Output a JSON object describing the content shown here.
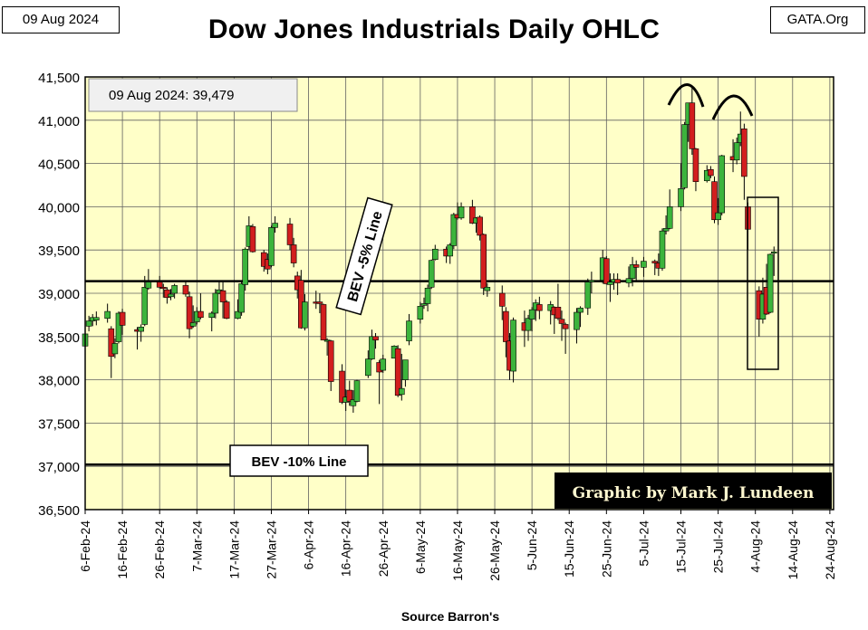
{
  "header": {
    "date_stamp": "09 Aug 2024",
    "title": "Dow Jones Industrials Daily OHLC",
    "brand": "GATA.Org"
  },
  "annotations": {
    "last_close": "09 Aug 2024:  39,479",
    "bev5_label": "BEV -5% Line",
    "bev10_label": "BEV -10% Line",
    "credit": "Graphic by Mark J. Lundeen",
    "source": "Source Barron's"
  },
  "colors": {
    "plot_bg": "#ffffc8",
    "grid": "#606060",
    "up": "#3cb43c",
    "down": "#d21e1e",
    "frame": "#000000"
  },
  "chart_data": {
    "type": "ohlc",
    "ylim": [
      36500,
      41500
    ],
    "y_ticks": [
      36500,
      37000,
      37500,
      38000,
      38500,
      39000,
      39500,
      40000,
      40500,
      41000,
      41500
    ],
    "y_tick_labels": [
      "36,500",
      "37,000",
      "37,500",
      "38,000",
      "38,500",
      "39,000",
      "39,500",
      "40,000",
      "40,500",
      "41,000",
      "41,500"
    ],
    "x_tick_labels": [
      "6-Feb-24",
      "16-Feb-24",
      "26-Feb-24",
      "7-Mar-24",
      "17-Mar-24",
      "27-Mar-24",
      "6-Apr-24",
      "16-Apr-24",
      "26-Apr-24",
      "6-May-24",
      "16-May-24",
      "26-May-24",
      "5-Jun-24",
      "15-Jun-24",
      "25-Jun-24",
      "5-Jul-24",
      "15-Jul-24",
      "25-Jul-24",
      "4-Aug-24",
      "14-Aug-24",
      "24-Aug-24"
    ],
    "x_day_start": "6-Feb-24",
    "x_day_span": 201,
    "reference_lines": [
      {
        "label": "BEV -5% Line",
        "value": 39140
      },
      {
        "label": "BEV -10% Line",
        "value": 37020
      }
    ],
    "bars": [
      {
        "date": "5-Feb-24",
        "open": 38520,
        "high": 38620,
        "low": 38300,
        "close": 38380
      },
      {
        "date": "6-Feb-24",
        "open": 38390,
        "high": 38700,
        "low": 38360,
        "close": 38530
      },
      {
        "date": "7-Feb-24",
        "open": 38620,
        "high": 38740,
        "low": 38560,
        "close": 38680
      },
      {
        "date": "8-Feb-24",
        "open": 38680,
        "high": 38760,
        "low": 38620,
        "close": 38720
      },
      {
        "date": "9-Feb-24",
        "open": 38690,
        "high": 38790,
        "low": 38630,
        "close": 38720
      },
      {
        "date": "12-Feb-24",
        "open": 38710,
        "high": 38880,
        "low": 38660,
        "close": 38790
      },
      {
        "date": "13-Feb-24",
        "open": 38590,
        "high": 38620,
        "low": 38020,
        "close": 38270
      },
      {
        "date": "14-Feb-24",
        "open": 38300,
        "high": 38480,
        "low": 38250,
        "close": 38420
      },
      {
        "date": "15-Feb-24",
        "open": 38440,
        "high": 38790,
        "low": 38420,
        "close": 38770
      },
      {
        "date": "16-Feb-24",
        "open": 38780,
        "high": 38820,
        "low": 38520,
        "close": 38630
      },
      {
        "date": "20-Feb-24",
        "open": 38580,
        "high": 38610,
        "low": 38350,
        "close": 38560
      },
      {
        "date": "21-Feb-24",
        "open": 38560,
        "high": 38640,
        "low": 38440,
        "close": 38610
      },
      {
        "date": "22-Feb-24",
        "open": 38640,
        "high": 39200,
        "low": 38620,
        "close": 39070
      },
      {
        "date": "23-Feb-24",
        "open": 39060,
        "high": 39280,
        "low": 39040,
        "close": 39130
      },
      {
        "date": "26-Feb-24",
        "open": 39130,
        "high": 39200,
        "low": 39050,
        "close": 39070
      },
      {
        "date": "27-Feb-24",
        "open": 39070,
        "high": 39110,
        "low": 38950,
        "close": 39060
      },
      {
        "date": "28-Feb-24",
        "open": 39040,
        "high": 39070,
        "low": 38880,
        "close": 38950
      },
      {
        "date": "29-Feb-24",
        "open": 38960,
        "high": 39050,
        "low": 38920,
        "close": 38990
      },
      {
        "date": "1-Mar-24",
        "open": 39000,
        "high": 39110,
        "low": 38940,
        "close": 39090
      },
      {
        "date": "4-Mar-24",
        "open": 39090,
        "high": 39140,
        "low": 38960,
        "close": 38990
      },
      {
        "date": "5-Mar-24",
        "open": 38960,
        "high": 39020,
        "low": 38480,
        "close": 38590
      },
      {
        "date": "6-Mar-24",
        "open": 38620,
        "high": 38860,
        "low": 38600,
        "close": 38660
      },
      {
        "date": "7-Mar-24",
        "open": 38670,
        "high": 38840,
        "low": 38640,
        "close": 38790
      },
      {
        "date": "8-Mar-24",
        "open": 38790,
        "high": 39000,
        "low": 38700,
        "close": 38720
      },
      {
        "date": "11-Mar-24",
        "open": 38720,
        "high": 38790,
        "low": 38560,
        "close": 38770
      },
      {
        "date": "12-Mar-24",
        "open": 38770,
        "high": 39050,
        "low": 38710,
        "close": 39000
      },
      {
        "date": "13-Mar-24",
        "open": 39000,
        "high": 39150,
        "low": 38990,
        "close": 39040
      },
      {
        "date": "14-Mar-24",
        "open": 39030,
        "high": 39150,
        "low": 38710,
        "close": 38900
      },
      {
        "date": "15-Mar-24",
        "open": 38900,
        "high": 38920,
        "low": 38700,
        "close": 38710
      },
      {
        "date": "18-Mar-24",
        "open": 38710,
        "high": 38930,
        "low": 38700,
        "close": 38790
      },
      {
        "date": "19-Mar-24",
        "open": 38780,
        "high": 39150,
        "low": 38740,
        "close": 39110
      },
      {
        "date": "20-Mar-24",
        "open": 39100,
        "high": 39530,
        "low": 39030,
        "close": 39510
      },
      {
        "date": "21-Mar-24",
        "open": 39540,
        "high": 39890,
        "low": 39500,
        "close": 39780
      },
      {
        "date": "22-Mar-24",
        "open": 39770,
        "high": 39800,
        "low": 39470,
        "close": 39480
      },
      {
        "date": "25-Mar-24",
        "open": 39470,
        "high": 39500,
        "low": 39250,
        "close": 39310
      },
      {
        "date": "26-Mar-24",
        "open": 39390,
        "high": 39460,
        "low": 39220,
        "close": 39280
      },
      {
        "date": "27-Mar-24",
        "open": 39320,
        "high": 39780,
        "low": 39300,
        "close": 39760
      },
      {
        "date": "28-Mar-24",
        "open": 39760,
        "high": 39890,
        "low": 39700,
        "close": 39810
      },
      {
        "date": "1-Apr-24",
        "open": 39800,
        "high": 39870,
        "low": 39500,
        "close": 39560
      },
      {
        "date": "2-Apr-24",
        "open": 39560,
        "high": 39640,
        "low": 39300,
        "close": 39350
      },
      {
        "date": "3-Apr-24",
        "open": 39200,
        "high": 39250,
        "low": 38940,
        "close": 39040
      },
      {
        "date": "4-Apr-24",
        "open": 39150,
        "high": 39270,
        "low": 38590,
        "close": 38600
      },
      {
        "date": "5-Apr-24",
        "open": 38600,
        "high": 38990,
        "low": 38570,
        "close": 38900
      },
      {
        "date": "8-Apr-24",
        "open": 38900,
        "high": 39030,
        "low": 38820,
        "close": 38890
      },
      {
        "date": "9-Apr-24",
        "open": 38900,
        "high": 39000,
        "low": 38770,
        "close": 38880
      },
      {
        "date": "10-Apr-24",
        "open": 38870,
        "high": 38880,
        "low": 38470,
        "close": 38460
      },
      {
        "date": "11-Apr-24",
        "open": 38460,
        "high": 38480,
        "low": 38280,
        "close": 38460
      },
      {
        "date": "12-Apr-24",
        "open": 38450,
        "high": 38460,
        "low": 37870,
        "close": 37980
      },
      {
        "date": "15-Apr-24",
        "open": 38100,
        "high": 38180,
        "low": 37720,
        "close": 37740
      },
      {
        "date": "16-Apr-24",
        "open": 37740,
        "high": 37890,
        "low": 37640,
        "close": 37800
      },
      {
        "date": "17-Apr-24",
        "open": 37880,
        "high": 37990,
        "low": 37700,
        "close": 37750
      },
      {
        "date": "18-Apr-24",
        "open": 37700,
        "high": 37880,
        "low": 37620,
        "close": 37770
      },
      {
        "date": "19-Apr-24",
        "open": 37750,
        "high": 38000,
        "low": 37740,
        "close": 37990
      },
      {
        "date": "22-Apr-24",
        "open": 38050,
        "high": 38340,
        "low": 38020,
        "close": 38240
      },
      {
        "date": "23-Apr-24",
        "open": 38240,
        "high": 38580,
        "low": 38230,
        "close": 38500
      },
      {
        "date": "24-Apr-24",
        "open": 38500,
        "high": 38540,
        "low": 38360,
        "close": 38460
      },
      {
        "date": "25-Apr-24",
        "open": 38200,
        "high": 38230,
        "low": 37720,
        "close": 38090
      },
      {
        "date": "26-Apr-24",
        "open": 38110,
        "high": 38290,
        "low": 38080,
        "close": 38240
      },
      {
        "date": "29-Apr-24",
        "open": 38250,
        "high": 38400,
        "low": 38250,
        "close": 38390
      },
      {
        "date": "30-Apr-24",
        "open": 38360,
        "high": 38400,
        "low": 37800,
        "close": 37820
      },
      {
        "date": "1-May-24",
        "open": 37830,
        "high": 38300,
        "low": 37760,
        "close": 37900
      },
      {
        "date": "2-May-24",
        "open": 38000,
        "high": 38230,
        "low": 37920,
        "close": 38230
      },
      {
        "date": "3-May-24",
        "open": 38450,
        "high": 38760,
        "low": 38400,
        "close": 38680
      },
      {
        "date": "6-May-24",
        "open": 38700,
        "high": 38900,
        "low": 38650,
        "close": 38850
      },
      {
        "date": "7-May-24",
        "open": 38860,
        "high": 38950,
        "low": 38820,
        "close": 38880
      },
      {
        "date": "8-May-24",
        "open": 38880,
        "high": 39100,
        "low": 38790,
        "close": 39060
      },
      {
        "date": "9-May-24",
        "open": 39070,
        "high": 39390,
        "low": 39050,
        "close": 39380
      },
      {
        "date": "10-May-24",
        "open": 39390,
        "high": 39560,
        "low": 39380,
        "close": 39510
      },
      {
        "date": "13-May-24",
        "open": 39510,
        "high": 39540,
        "low": 39350,
        "close": 39430
      },
      {
        "date": "14-May-24",
        "open": 39430,
        "high": 39580,
        "low": 39340,
        "close": 39560
      },
      {
        "date": "15-May-24",
        "open": 39550,
        "high": 39930,
        "low": 39510,
        "close": 39910
      },
      {
        "date": "16-May-24",
        "open": 39910,
        "high": 40050,
        "low": 39850,
        "close": 39870
      },
      {
        "date": "17-May-24",
        "open": 39870,
        "high": 40050,
        "low": 39850,
        "close": 40000
      },
      {
        "date": "20-May-24",
        "open": 40000,
        "high": 40080,
        "low": 39800,
        "close": 39810
      },
      {
        "date": "21-May-24",
        "open": 39810,
        "high": 39880,
        "low": 39700,
        "close": 39870
      },
      {
        "date": "22-May-24",
        "open": 39880,
        "high": 39900,
        "low": 39610,
        "close": 39670
      },
      {
        "date": "23-May-24",
        "open": 39680,
        "high": 39690,
        "low": 38980,
        "close": 39060
      },
      {
        "date": "24-May-24",
        "open": 39030,
        "high": 39120,
        "low": 38960,
        "close": 39070
      },
      {
        "date": "28-May-24",
        "open": 39000,
        "high": 39090,
        "low": 38690,
        "close": 38850
      },
      {
        "date": "29-May-24",
        "open": 38790,
        "high": 38840,
        "low": 38260,
        "close": 38440
      },
      {
        "date": "30-May-24",
        "open": 38450,
        "high": 38540,
        "low": 38000,
        "close": 38110
      },
      {
        "date": "31-May-24",
        "open": 38100,
        "high": 38720,
        "low": 37970,
        "close": 38690
      },
      {
        "date": "3-Jun-24",
        "open": 38660,
        "high": 38800,
        "low": 38380,
        "close": 38570
      },
      {
        "date": "4-Jun-24",
        "open": 38570,
        "high": 38750,
        "low": 38450,
        "close": 38710
      },
      {
        "date": "5-Jun-24",
        "open": 38700,
        "high": 38840,
        "low": 38560,
        "close": 38810
      },
      {
        "date": "6-Jun-24",
        "open": 38810,
        "high": 38930,
        "low": 38680,
        "close": 38890
      },
      {
        "date": "7-Jun-24",
        "open": 38870,
        "high": 38960,
        "low": 38700,
        "close": 38800
      },
      {
        "date": "10-Jun-24",
        "open": 38800,
        "high": 38910,
        "low": 38640,
        "close": 38870
      },
      {
        "date": "11-Jun-24",
        "open": 38840,
        "high": 38850,
        "low": 38530,
        "close": 38750
      },
      {
        "date": "12-Jun-24",
        "open": 38840,
        "high": 39110,
        "low": 38690,
        "close": 38710
      },
      {
        "date": "13-Jun-24",
        "open": 38700,
        "high": 38800,
        "low": 38450,
        "close": 38650
      },
      {
        "date": "14-Jun-24",
        "open": 38640,
        "high": 38660,
        "low": 38300,
        "close": 38590
      },
      {
        "date": "17-Jun-24",
        "open": 38580,
        "high": 38830,
        "low": 38420,
        "close": 38780
      },
      {
        "date": "18-Jun-24",
        "open": 38780,
        "high": 38850,
        "low": 38610,
        "close": 38830
      },
      {
        "date": "20-Jun-24",
        "open": 38830,
        "high": 39170,
        "low": 38750,
        "close": 39130
      },
      {
        "date": "21-Jun-24",
        "open": 39140,
        "high": 39250,
        "low": 39000,
        "close": 39150
      },
      {
        "date": "24-Jun-24",
        "open": 39150,
        "high": 39500,
        "low": 39110,
        "close": 39410
      },
      {
        "date": "25-Jun-24",
        "open": 39400,
        "high": 39430,
        "low": 39100,
        "close": 39110
      },
      {
        "date": "26-Jun-24",
        "open": 39100,
        "high": 39230,
        "low": 38900,
        "close": 39130
      },
      {
        "date": "27-Jun-24",
        "open": 39130,
        "high": 39230,
        "low": 39040,
        "close": 39160
      },
      {
        "date": "28-Jun-24",
        "open": 39160,
        "high": 39230,
        "low": 38980,
        "close": 39120
      },
      {
        "date": "1-Jul-24",
        "open": 39120,
        "high": 39310,
        "low": 39070,
        "close": 39170
      },
      {
        "date": "2-Jul-24",
        "open": 39170,
        "high": 39420,
        "low": 39080,
        "close": 39330
      },
      {
        "date": "3-Jul-24",
        "open": 39330,
        "high": 39380,
        "low": 39150,
        "close": 39300
      },
      {
        "date": "5-Jul-24",
        "open": 39300,
        "high": 39420,
        "low": 39190,
        "close": 39370
      },
      {
        "date": "8-Jul-24",
        "open": 39370,
        "high": 39390,
        "low": 39210,
        "close": 39350
      },
      {
        "date": "9-Jul-24",
        "open": 39350,
        "high": 39460,
        "low": 39200,
        "close": 39290
      },
      {
        "date": "10-Jul-24",
        "open": 39290,
        "high": 39750,
        "low": 39260,
        "close": 39720
      },
      {
        "date": "11-Jul-24",
        "open": 39720,
        "high": 39900,
        "low": 39680,
        "close": 39750
      },
      {
        "date": "12-Jul-24",
        "open": 39750,
        "high": 40200,
        "low": 39740,
        "close": 40000
      },
      {
        "date": "15-Jul-24",
        "open": 40000,
        "high": 40500,
        "low": 39950,
        "close": 40210
      },
      {
        "date": "16-Jul-24",
        "open": 40220,
        "high": 40980,
        "low": 40200,
        "close": 40950
      },
      {
        "date": "17-Jul-24",
        "open": 40950,
        "high": 41200,
        "low": 40750,
        "close": 41200
      },
      {
        "date": "18-Jul-24",
        "open": 41200,
        "high": 41380,
        "low": 40600,
        "close": 40670
      },
      {
        "date": "19-Jul-24",
        "open": 40670,
        "high": 40680,
        "low": 40180,
        "close": 40290
      },
      {
        "date": "22-Jul-24",
        "open": 40300,
        "high": 40480,
        "low": 40280,
        "close": 40420
      },
      {
        "date": "23-Jul-24",
        "open": 40430,
        "high": 40470,
        "low": 40330,
        "close": 40360
      },
      {
        "date": "24-Jul-24",
        "open": 40290,
        "high": 40350,
        "low": 39810,
        "close": 39850
      },
      {
        "date": "25-Jul-24",
        "open": 39850,
        "high": 40100,
        "low": 39790,
        "close": 39930
      },
      {
        "date": "26-Jul-24",
        "open": 39930,
        "high": 40600,
        "low": 39900,
        "close": 40590
      },
      {
        "date": "29-Jul-24",
        "open": 40580,
        "high": 40780,
        "low": 40400,
        "close": 40540
      },
      {
        "date": "30-Jul-24",
        "open": 40540,
        "high": 40800,
        "low": 40490,
        "close": 40740
      },
      {
        "date": "31-Jul-24",
        "open": 40740,
        "high": 41100,
        "low": 40700,
        "close": 40840
      },
      {
        "date": "1-Aug-24",
        "open": 40900,
        "high": 40960,
        "low": 40080,
        "close": 40350
      },
      {
        "date": "2-Aug-24",
        "open": 40000,
        "high": 40050,
        "low": 39500,
        "close": 39740
      },
      {
        "date": "5-Aug-24",
        "open": 39030,
        "high": 39080,
        "low": 38500,
        "close": 38700
      },
      {
        "date": "6-Aug-24",
        "open": 38700,
        "high": 39180,
        "low": 38650,
        "close": 38990
      },
      {
        "date": "7-Aug-24",
        "open": 39070,
        "high": 39340,
        "low": 38750,
        "close": 38760
      },
      {
        "date": "8-Aug-24",
        "open": 38780,
        "high": 39460,
        "low": 38770,
        "close": 39450
      },
      {
        "date": "9-Aug-24",
        "open": 39470,
        "high": 39540,
        "low": 39200,
        "close": 39479
      }
    ]
  }
}
